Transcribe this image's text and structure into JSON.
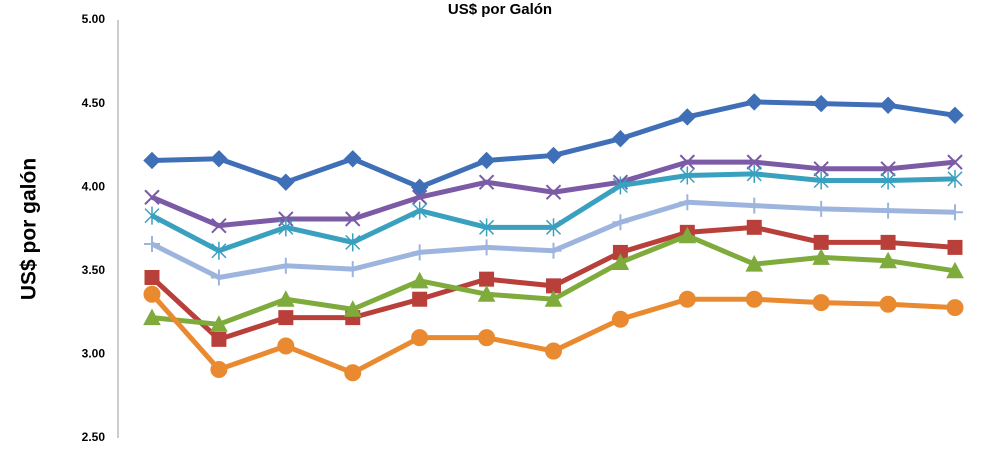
{
  "chart_data": {
    "type": "line",
    "title": "US$ por Galón",
    "y_label": "US$ por galón",
    "categories": [
      null,
      null,
      null,
      null,
      null,
      null,
      null,
      null,
      null,
      null,
      null,
      null,
      null
    ],
    "ylim": [
      2.5,
      5.0
    ],
    "yticks": [
      {
        "value": 2.5,
        "label": "2.50"
      },
      {
        "value": 3.0,
        "label": "3.00"
      },
      {
        "value": 3.5,
        "label": "3.50"
      },
      {
        "value": 4.0,
        "label": "4.00"
      },
      {
        "value": 4.5,
        "label": "4.50"
      },
      {
        "value": 5.0,
        "label": "5.00"
      }
    ],
    "grid": false,
    "series": [
      {
        "color": "#3f6fb6",
        "marker": "diamond",
        "values": [
          4.16,
          4.17,
          4.03,
          4.17,
          4.0,
          4.16,
          4.19,
          4.29,
          4.42,
          4.51,
          4.5,
          4.49,
          4.43
        ]
      },
      {
        "color": "#7b5aa6",
        "marker": "x",
        "values": [
          3.94,
          3.77,
          3.81,
          3.81,
          3.94,
          4.03,
          3.97,
          4.03,
          4.15,
          4.15,
          4.11,
          4.11,
          4.15
        ]
      },
      {
        "color": "#3aa0bf",
        "marker": "star",
        "values": [
          3.83,
          3.62,
          3.76,
          3.67,
          3.86,
          3.76,
          3.76,
          4.01,
          4.07,
          4.08,
          4.04,
          4.04,
          4.05
        ]
      },
      {
        "color": "#9db5de",
        "marker": "plus",
        "values": [
          3.66,
          3.46,
          3.53,
          3.51,
          3.61,
          3.64,
          3.62,
          3.79,
          3.91,
          3.89,
          3.87,
          3.86,
          3.85
        ]
      },
      {
        "color": "#b9403a",
        "marker": "square",
        "values": [
          3.46,
          3.09,
          3.22,
          3.22,
          3.33,
          3.45,
          3.41,
          3.61,
          3.73,
          3.76,
          3.67,
          3.67,
          3.64
        ]
      },
      {
        "color": "#7fab3c",
        "marker": "triangle",
        "values": [
          3.22,
          3.18,
          3.33,
          3.27,
          3.44,
          3.36,
          3.33,
          3.55,
          3.71,
          3.54,
          3.58,
          3.56,
          3.5
        ]
      },
      {
        "color": "#ea8a30",
        "marker": "circle",
        "values": [
          3.36,
          2.91,
          3.05,
          2.89,
          3.1,
          3.1,
          3.02,
          3.21,
          3.33,
          3.33,
          3.31,
          3.3,
          3.28
        ]
      }
    ]
  }
}
